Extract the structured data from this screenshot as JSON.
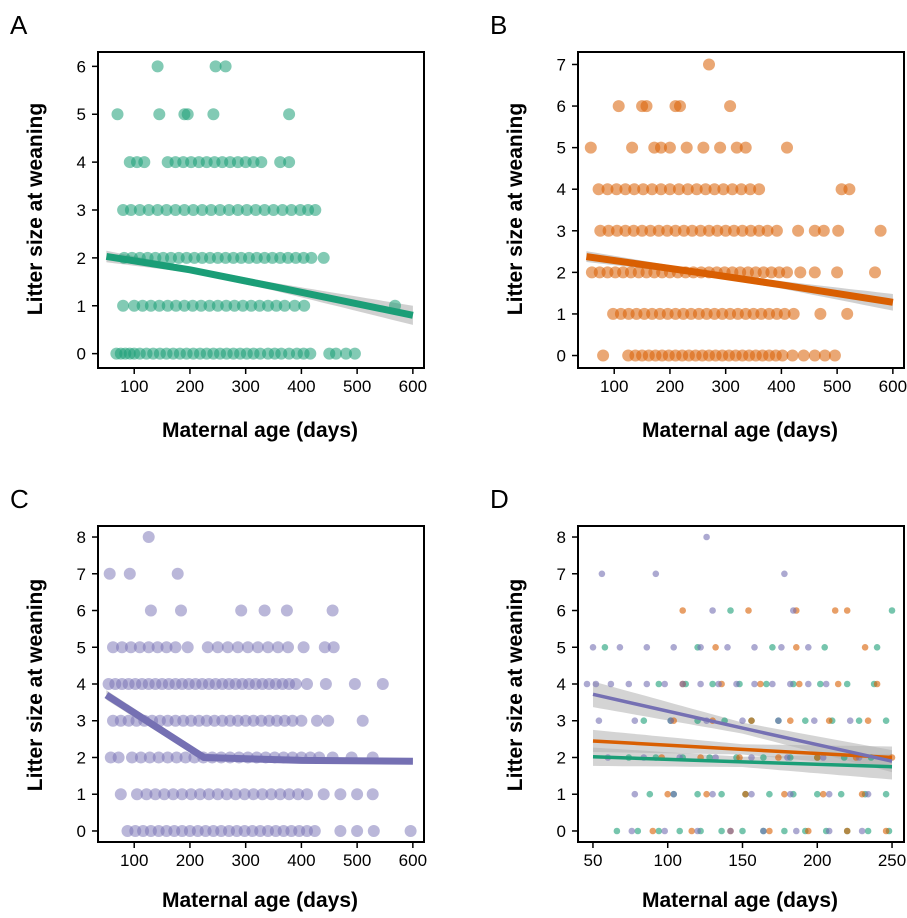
{
  "figure": {
    "colors": {
      "A": "#1b9e77",
      "B": "#d95f02",
      "C": "#7570b3",
      "ci_band": "#b0b0b0"
    }
  },
  "chart_data": [
    {
      "panel": "A",
      "type": "scatter",
      "xlabel": "Maternal age (days)",
      "ylabel": "Litter size at weaning",
      "xlim": [
        35,
        620
      ],
      "ylim": [
        -0.3,
        6.3
      ],
      "xticks": [
        100,
        200,
        300,
        400,
        500,
        600
      ],
      "yticks": [
        0,
        1,
        2,
        3,
        4,
        5,
        6
      ],
      "grid": false,
      "legend": "none",
      "point_color": "#1b9e77",
      "points": [
        {
          "y": 0,
          "x": [
            68,
            76,
            84,
            92,
            100,
            110,
            122,
            134,
            146,
            158,
            170,
            182,
            194,
            206,
            218,
            230,
            242,
            254,
            266,
            278,
            290,
            302,
            314,
            326,
            340,
            352,
            364,
            378,
            392,
            404,
            416,
            450,
            462,
            480,
            496
          ]
        },
        {
          "y": 1,
          "x": [
            80,
            100,
            115,
            130,
            145,
            160,
            175,
            190,
            205,
            220,
            235,
            250,
            265,
            280,
            295,
            310,
            325,
            340,
            355,
            370,
            388,
            405,
            568
          ]
        },
        {
          "y": 2,
          "x": [
            82,
            96,
            110,
            124,
            138,
            152,
            166,
            180,
            194,
            208,
            222,
            236,
            250,
            264,
            278,
            292,
            306,
            320,
            334,
            348,
            362,
            376,
            390,
            404,
            418,
            440
          ]
        },
        {
          "y": 3,
          "x": [
            80,
            94,
            110,
            126,
            142,
            158,
            174,
            190,
            206,
            222,
            238,
            254,
            270,
            286,
            302,
            318,
            334,
            350,
            366,
            382,
            398,
            412,
            425
          ]
        },
        {
          "y": 4,
          "x": [
            92,
            105,
            118,
            160,
            174,
            188,
            202,
            216,
            230,
            244,
            258,
            272,
            286,
            300,
            314,
            328,
            362,
            378
          ]
        },
        {
          "y": 5,
          "x": [
            70,
            145,
            190,
            196,
            242,
            378
          ]
        },
        {
          "y": 6,
          "x": [
            142,
            246,
            264
          ]
        }
      ],
      "fit": [
        {
          "x": 50,
          "y": 2.03,
          "ci": 0.12
        },
        {
          "x": 200,
          "y": 1.75,
          "ci": 0.06
        },
        {
          "x": 350,
          "y": 1.4,
          "ci": 0.08
        },
        {
          "x": 600,
          "y": 0.8,
          "ci": 0.2
        }
      ]
    },
    {
      "panel": "B",
      "type": "scatter",
      "xlabel": "Maternal age (days)",
      "ylabel": "Litter size at weaning",
      "xlim": [
        35,
        620
      ],
      "ylim": [
        -0.3,
        7.3
      ],
      "xticks": [
        100,
        200,
        300,
        400,
        500,
        600
      ],
      "yticks": [
        0,
        1,
        2,
        3,
        4,
        5,
        6,
        7
      ],
      "grid": false,
      "legend": "none",
      "point_color": "#d95f02",
      "points": [
        {
          "y": 0,
          "x": [
            80,
            125,
            138,
            150,
            162,
            174,
            186,
            198,
            210,
            222,
            234,
            246,
            258,
            270,
            282,
            294,
            306,
            318,
            330,
            342,
            354,
            366,
            378,
            390,
            402,
            420,
            440,
            460,
            478,
            496
          ]
        },
        {
          "y": 1,
          "x": [
            98,
            112,
            126,
            140,
            154,
            168,
            182,
            196,
            210,
            224,
            238,
            252,
            266,
            280,
            294,
            308,
            322,
            336,
            350,
            364,
            378,
            392,
            406,
            422,
            470,
            518
          ]
        },
        {
          "y": 2,
          "x": [
            60,
            74,
            88,
            102,
            116,
            130,
            144,
            158,
            172,
            186,
            200,
            214,
            228,
            242,
            256,
            270,
            284,
            298,
            312,
            326,
            340,
            354,
            368,
            382,
            396,
            410,
            434,
            460,
            500,
            568
          ]
        },
        {
          "y": 3,
          "x": [
            75,
            90,
            105,
            120,
            135,
            150,
            165,
            180,
            195,
            210,
            225,
            240,
            255,
            270,
            285,
            300,
            315,
            330,
            345,
            360,
            375,
            392,
            430,
            460,
            476,
            502,
            578
          ]
        },
        {
          "y": 4,
          "x": [
            72,
            88,
            104,
            120,
            136,
            152,
            168,
            184,
            200,
            216,
            232,
            248,
            264,
            280,
            296,
            312,
            328,
            344,
            360,
            508,
            522
          ]
        },
        {
          "y": 5,
          "x": [
            58,
            132,
            172,
            184,
            200,
            230,
            260,
            290,
            320,
            336,
            410
          ]
        },
        {
          "y": 6,
          "x": [
            108,
            150,
            158,
            210,
            218,
            308
          ]
        },
        {
          "y": 7,
          "x": [
            270
          ]
        }
      ],
      "fit": [
        {
          "x": 50,
          "y": 2.38,
          "ci": 0.13
        },
        {
          "x": 250,
          "y": 2.0,
          "ci": 0.06
        },
        {
          "x": 400,
          "y": 1.7,
          "ci": 0.09
        },
        {
          "x": 600,
          "y": 1.28,
          "ci": 0.2
        }
      ]
    },
    {
      "panel": "C",
      "type": "scatter",
      "xlabel": "Maternal age (days)",
      "ylabel": "Litter size at weaning",
      "xlim": [
        35,
        620
      ],
      "ylim": [
        -0.3,
        8.3
      ],
      "xticks": [
        100,
        200,
        300,
        400,
        500,
        600
      ],
      "yticks": [
        0,
        1,
        2,
        3,
        4,
        5,
        6,
        7,
        8
      ],
      "grid": false,
      "legend": "none",
      "point_color": "#7570b3",
      "points": [
        {
          "y": 0,
          "x": [
            88,
            102,
            116,
            130,
            144,
            158,
            172,
            186,
            200,
            214,
            228,
            242,
            256,
            270,
            284,
            298,
            312,
            326,
            340,
            354,
            368,
            382,
            396,
            410,
            424,
            470,
            500,
            530,
            596
          ]
        },
        {
          "y": 1,
          "x": [
            76,
            105,
            122,
            138,
            154,
            170,
            186,
            202,
            218,
            234,
            250,
            266,
            282,
            298,
            314,
            330,
            346,
            362,
            378,
            394,
            410,
            440,
            470,
            500,
            528
          ]
        },
        {
          "y": 2,
          "x": [
            58,
            72,
            96,
            112,
            128,
            144,
            160,
            176,
            192,
            208,
            224,
            240,
            256,
            272,
            288,
            304,
            320,
            336,
            352,
            368,
            384,
            400,
            416,
            432,
            456,
            490,
            528
          ]
        },
        {
          "y": 3,
          "x": [
            62,
            76,
            90,
            104,
            118,
            132,
            146,
            160,
            174,
            188,
            202,
            216,
            230,
            244,
            258,
            272,
            286,
            300,
            314,
            328,
            342,
            356,
            370,
            384,
            400,
            428,
            448,
            510
          ]
        },
        {
          "y": 4,
          "x": [
            54,
            66,
            78,
            90,
            102,
            114,
            126,
            138,
            150,
            162,
            174,
            186,
            198,
            210,
            222,
            234,
            246,
            258,
            270,
            282,
            294,
            306,
            318,
            330,
            342,
            354,
            366,
            378,
            390,
            410,
            444,
            496,
            546
          ]
        },
        {
          "y": 5,
          "x": [
            62,
            78,
            94,
            110,
            126,
            142,
            158,
            174,
            196,
            232,
            250,
            268,
            286,
            304,
            322,
            340,
            358,
            376,
            404,
            442,
            458
          ]
        },
        {
          "y": 6,
          "x": [
            130,
            184,
            292,
            334,
            374,
            456
          ]
        },
        {
          "y": 7,
          "x": [
            56,
            92,
            178
          ]
        },
        {
          "y": 8,
          "x": [
            126
          ]
        }
      ],
      "fit": [
        {
          "x": 50,
          "y": 3.7,
          "ci": 0.13
        },
        {
          "x": 225,
          "y": 2.0,
          "ci": 0.1
        },
        {
          "x": 400,
          "y": 1.92,
          "ci": 0.06
        },
        {
          "x": 600,
          "y": 1.9,
          "ci": 0.07
        }
      ]
    },
    {
      "panel": "D",
      "type": "scatter",
      "xlabel": "Maternal age (days)",
      "ylabel": "Litter size at weaning",
      "xlim": [
        40,
        258
      ],
      "ylim": [
        -0.3,
        8.3
      ],
      "xticks": [
        50,
        100,
        150,
        200,
        250
      ],
      "yticks": [
        0,
        1,
        2,
        3,
        4,
        5,
        6,
        7,
        8
      ],
      "grid": false,
      "legend": "none",
      "series": [
        {
          "color": "#1b9e77",
          "points": [
            {
              "y": 0,
              "x": [
                66,
                80,
                94,
                108,
                122,
                136,
                150,
                164,
                178,
                192,
                206,
                220,
                234,
                248
              ]
            },
            {
              "y": 1,
              "x": [
                88,
                104,
                120,
                136,
                152,
                168,
                184,
                200,
                216,
                232,
                246
              ]
            },
            {
              "y": 2,
              "x": [
                74,
                92,
                110,
                128,
                146,
                164,
                182,
                200,
                218,
                236
              ]
            },
            {
              "y": 3,
              "x": [
                84,
                102,
                120,
                138,
                156,
                174,
                192,
                210,
                228,
                246
              ]
            },
            {
              "y": 4,
              "x": [
                94,
                112,
                130,
                148,
                166,
                184,
                202,
                220,
                238
              ]
            },
            {
              "y": 5,
              "x": [
                58,
                120,
                170,
                205,
                240
              ]
            },
            {
              "y": 6,
              "x": [
                142,
                250
              ]
            }
          ],
          "fit": [
            {
              "x": 50,
              "y": 2.02,
              "ci": 0.25
            },
            {
              "x": 150,
              "y": 1.88,
              "ci": 0.14
            },
            {
              "x": 250,
              "y": 1.75,
              "ci": 0.35
            }
          ]
        },
        {
          "color": "#d95f02",
          "points": [
            {
              "y": 0,
              "x": [
                90,
                116,
                142,
                168,
                194,
                220,
                246
              ]
            },
            {
              "y": 1,
              "x": [
                100,
                126,
                152,
                178,
                204,
                230
              ]
            },
            {
              "y": 2,
              "x": [
                96,
                122,
                148,
                174,
                200,
                226,
                250
              ]
            },
            {
              "y": 3,
              "x": [
                104,
                130,
                156,
                182,
                208,
                234
              ]
            },
            {
              "y": 4,
              "x": [
                110,
                136,
                162,
                188,
                214,
                240
              ]
            },
            {
              "y": 5,
              "x": [
                132,
                186,
                232
              ]
            },
            {
              "y": 6,
              "x": [
                110,
                154,
                186,
                212,
                220
              ]
            }
          ],
          "fit": [
            {
              "x": 50,
              "y": 2.45,
              "ci": 0.3
            },
            {
              "x": 150,
              "y": 2.22,
              "ci": 0.14
            },
            {
              "x": 250,
              "y": 2.0,
              "ci": 0.3
            }
          ]
        },
        {
          "color": "#7570b3",
          "points": [
            {
              "y": 0,
              "x": [
                76,
                98,
                120,
                142,
                164,
                186,
                208,
                230
              ]
            },
            {
              "y": 1,
              "x": [
                78,
                104,
                130,
                156,
                182,
                208,
                234
              ]
            },
            {
              "y": 2,
              "x": [
                60,
                84,
                108,
                132,
                156,
                180,
                204,
                228
              ]
            },
            {
              "y": 3,
              "x": [
                54,
                78,
                102,
                126,
                150,
                174,
                198,
                222
              ]
            },
            {
              "y": 4,
              "x": [
                46,
                52,
                62,
                74,
                86,
                98,
                110,
                122,
                134,
                146,
                158,
                170,
                182,
                194,
                206
              ]
            },
            {
              "y": 5,
              "x": [
                50,
                68,
                86,
                104,
                122,
                140,
                158,
                176,
                194
              ]
            },
            {
              "y": 6,
              "x": [
                130,
                184
              ]
            },
            {
              "y": 7,
              "x": [
                56,
                92,
                178
              ]
            },
            {
              "y": 8,
              "x": [
                126
              ]
            }
          ],
          "fit": [
            {
              "x": 50,
              "y": 3.72,
              "ci": 0.35
            },
            {
              "x": 150,
              "y": 2.8,
              "ci": 0.15
            },
            {
              "x": 250,
              "y": 1.9,
              "ci": 0.3
            }
          ]
        }
      ]
    }
  ]
}
